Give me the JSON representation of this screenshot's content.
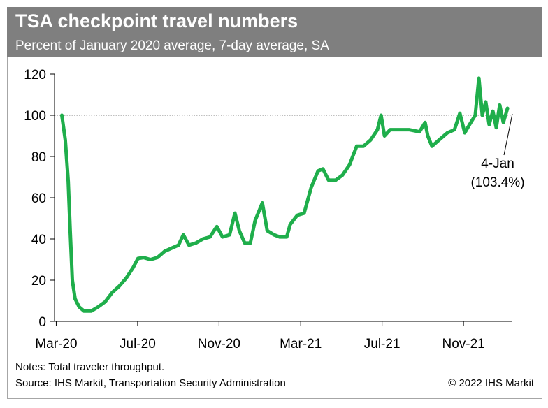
{
  "chart_data": {
    "type": "line",
    "title": "TSA checkpoint travel numbers",
    "subtitle": "Percent of January 2020 average, 7-day average, SA",
    "notes": "Notes: Total traveler throughput.",
    "source": "Source: IHS Markit, Transportation Security Administration",
    "copyright": "© 2022 IHS Markit",
    "annotation": [
      "4-Jan",
      "(103.4%)"
    ],
    "color": "#1fae4b",
    "hline": 100,
    "xlim": [
      2020.16,
      2022.03
    ],
    "ylim": [
      0,
      120
    ],
    "yticks": [
      0,
      20,
      40,
      60,
      80,
      100,
      120
    ],
    "xticks": [
      {
        "value": 2020.167,
        "label": "Mar-20"
      },
      {
        "value": 2020.5,
        "label": "Jul-20"
      },
      {
        "value": 2020.833,
        "label": "Nov-20"
      },
      {
        "value": 2021.167,
        "label": "Mar-21"
      },
      {
        "value": 2021.5,
        "label": "Jul-21"
      },
      {
        "value": 2021.833,
        "label": "Nov-21"
      }
    ],
    "x": [
      2020.19,
      2020.204,
      2020.216,
      2020.224,
      2020.233,
      2020.244,
      2020.261,
      2020.281,
      2020.31,
      2020.338,
      2020.367,
      2020.396,
      2020.424,
      2020.453,
      2020.481,
      2020.501,
      2020.524,
      2020.553,
      2020.581,
      2020.61,
      2020.638,
      2020.667,
      2020.687,
      2020.71,
      2020.738,
      2020.767,
      2020.796,
      2020.824,
      2020.847,
      2020.876,
      2020.898,
      2020.916,
      2020.938,
      2020.961,
      2020.981,
      2021.01,
      2021.03,
      2021.058,
      2021.081,
      2021.11,
      2021.124,
      2021.153,
      2021.181,
      2021.21,
      2021.238,
      2021.258,
      2021.281,
      2021.31,
      2021.338,
      2021.367,
      2021.396,
      2021.424,
      2021.453,
      2021.481,
      2021.496,
      2021.51,
      2021.533,
      2021.567,
      2021.61,
      2021.653,
      2021.676,
      2021.687,
      2021.704,
      2021.733,
      2021.767,
      2021.796,
      2021.818,
      2021.838,
      2021.858,
      2021.881,
      2021.896,
      2021.91,
      2021.924,
      2021.938,
      2021.953,
      2021.967,
      2021.981,
      2021.996,
      2022.013
    ],
    "values": [
      100,
      88,
      68,
      44,
      20,
      11,
      7,
      5,
      5,
      7,
      9.5,
      14,
      17,
      21,
      26,
      30.5,
      31,
      30,
      31,
      34,
      35.5,
      37,
      42,
      37,
      38,
      40,
      41,
      46,
      41,
      42,
      52.5,
      44,
      38,
      38,
      49,
      57.5,
      44,
      42,
      41,
      41,
      47,
      51.5,
      52.5,
      65,
      73,
      74,
      68.5,
      68.5,
      71,
      76,
      85,
      85,
      88,
      93,
      100,
      90,
      93,
      93,
      93,
      92,
      96.5,
      90,
      85,
      88,
      91.5,
      93,
      101,
      91.5,
      95.5,
      100,
      118,
      100,
      106.5,
      95.5,
      102,
      94,
      105,
      96.5,
      103.4
    ]
  }
}
